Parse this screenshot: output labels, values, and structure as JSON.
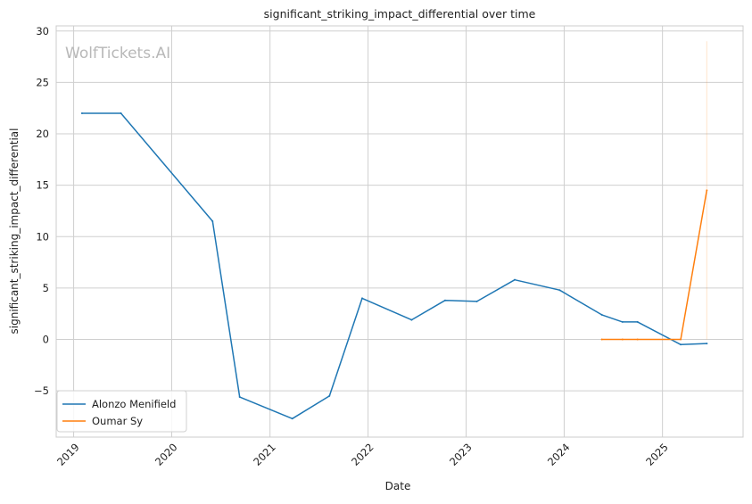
{
  "chart_data": {
    "type": "line",
    "title": "significant_striking_impact_differential over time",
    "xlabel": "Date",
    "ylabel": "significant_striking_impact_differential",
    "watermark": "WolfTickets.AI",
    "x_ticks": [
      "2019",
      "2020",
      "2021",
      "2022",
      "2023",
      "2024",
      "2025"
    ],
    "y_ticks": [
      "30",
      "25",
      "20",
      "15",
      "10",
      "5",
      "0",
      "−5"
    ],
    "xlim": [
      "2018-10-28",
      "2025-10-28"
    ],
    "ylim": [
      -9.5,
      30.5
    ],
    "grid": true,
    "legend_position": "bottom-left",
    "series": [
      {
        "name": "Alonzo Menifield",
        "color": "#1f77b4",
        "points": [
          {
            "x": "2019-02-01",
            "y": 22.0
          },
          {
            "x": "2019-06-26",
            "y": 22.0
          },
          {
            "x": "2020-06-01",
            "y": 11.5
          },
          {
            "x": "2020-09-10",
            "y": -5.6
          },
          {
            "x": "2021-03-25",
            "y": -7.7
          },
          {
            "x": "2021-08-10",
            "y": -5.5
          },
          {
            "x": "2021-12-10",
            "y": 4.0
          },
          {
            "x": "2022-06-12",
            "y": 1.9
          },
          {
            "x": "2022-10-15",
            "y": 3.8
          },
          {
            "x": "2023-02-10",
            "y": 3.7
          },
          {
            "x": "2023-07-01",
            "y": 5.8
          },
          {
            "x": "2023-12-15",
            "y": 4.8
          },
          {
            "x": "2024-05-20",
            "y": 2.4
          },
          {
            "x": "2024-08-05",
            "y": 1.7
          },
          {
            "x": "2024-09-30",
            "y": 1.7
          },
          {
            "x": "2025-03-10",
            "y": -0.5
          },
          {
            "x": "2025-06-15",
            "y": -0.4
          }
        ]
      },
      {
        "name": "Oumar Sy",
        "color": "#ff7f0e",
        "points": [
          {
            "x": "2024-05-20",
            "y": 0.0
          },
          {
            "x": "2024-08-05",
            "y": 0.0
          },
          {
            "x": "2024-09-30",
            "y": 0.0
          },
          {
            "x": "2025-03-10",
            "y": 0.0
          },
          {
            "x": "2025-06-15",
            "y": 14.5
          }
        ],
        "band": {
          "x": "2025-06-15",
          "y_low": 0.0,
          "y_high": 29.0
        }
      }
    ]
  }
}
